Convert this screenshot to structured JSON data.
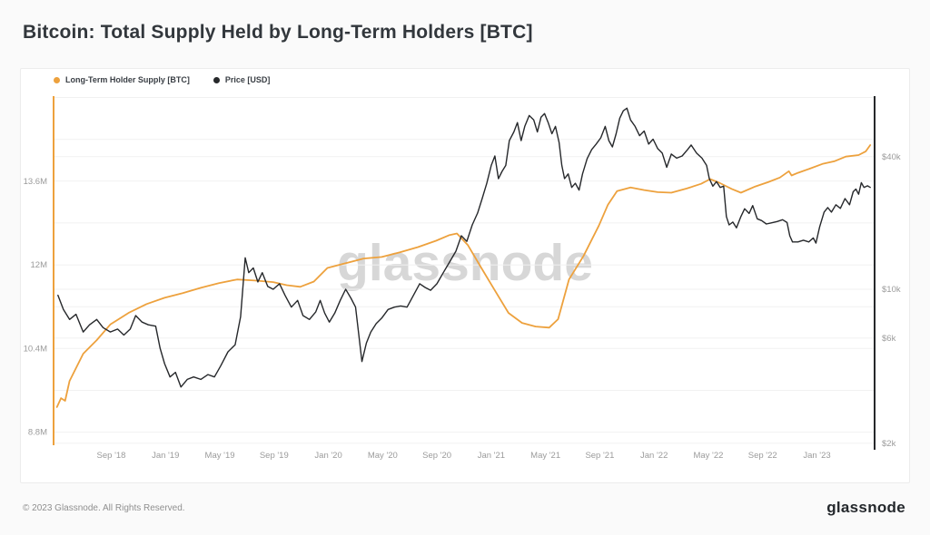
{
  "page": {
    "title": "Bitcoin: Total Supply Held by Long-Term Holders [BTC]",
    "watermark": "glassnode",
    "footer": {
      "copyright": "© 2023 Glassnode. All Rights Reserved.",
      "brand": "glassnode"
    }
  },
  "colors": {
    "supply": "#eda13d",
    "price": "#26282b",
    "grid": "#f1f1f1",
    "tick_label": "#9b9b9b",
    "background": "#ffffff"
  },
  "legend": [
    {
      "label": "Long-Term Holder Supply [BTC]",
      "color": "#eda13d"
    },
    {
      "label": "Price [USD]",
      "color": "#26282b"
    }
  ],
  "chart_data": {
    "type": "line",
    "title": "Bitcoin: Total Supply Held by Long-Term Holders [BTC]",
    "grid": "horizontal-only",
    "legend_position": "top-left",
    "x_axis": {
      "note": "t = months since 2018-05-01; data spans ~Apr 2018 to ~May 2023",
      "range": [
        -0.25,
        60.25
      ],
      "ticks": [
        {
          "t": 4,
          "label": "Sep '18"
        },
        {
          "t": 8,
          "label": "Jan '19"
        },
        {
          "t": 12,
          "label": "May '19"
        },
        {
          "t": 16,
          "label": "Sep '19"
        },
        {
          "t": 20,
          "label": "Jan '20"
        },
        {
          "t": 24,
          "label": "May '20"
        },
        {
          "t": 28,
          "label": "Sep '20"
        },
        {
          "t": 32,
          "label": "Jan '21"
        },
        {
          "t": 36,
          "label": "May '21"
        },
        {
          "t": 40,
          "label": "Sep '21"
        },
        {
          "t": 44,
          "label": "Jan '22"
        },
        {
          "t": 48,
          "label": "May '22"
        },
        {
          "t": 52,
          "label": "Sep '22"
        },
        {
          "t": 56,
          "label": "Jan '23"
        }
      ]
    },
    "y_left": {
      "name": "Long-Term Holder Supply [BTC]",
      "scale": "linear",
      "unit": "million BTC",
      "range": [
        8.55,
        15.4
      ],
      "grid_step": 0.8,
      "grid_start": 8.8,
      "ticks": [
        {
          "v": 8.8,
          "label": "8.8M"
        },
        {
          "v": 10.4,
          "label": "10.4M"
        },
        {
          "v": 12,
          "label": "12M"
        },
        {
          "v": 13.6,
          "label": "13.6M"
        }
      ]
    },
    "y_right": {
      "name": "Price [USD]",
      "scale": "log",
      "unit": "USD",
      "range": [
        1960,
        82800
      ],
      "ticks": [
        {
          "v": 2000,
          "label": "$2k"
        },
        {
          "v": 6000,
          "label": "$6k"
        },
        {
          "v": 10000,
          "label": "$10k"
        },
        {
          "v": 40000,
          "label": "$40k"
        }
      ]
    },
    "series": [
      {
        "name": "Long-Term Holder Supply [BTC]",
        "axis": "left",
        "color": "#eda13d",
        "width": 1.8,
        "points": [
          [
            0,
            9.28
          ],
          [
            0.3,
            9.45
          ],
          [
            0.6,
            9.4
          ],
          [
            0.93,
            9.78
          ],
          [
            1.93,
            10.3
          ],
          [
            2.93,
            10.56
          ],
          [
            3.93,
            10.86
          ],
          [
            5.27,
            11.08
          ],
          [
            6.6,
            11.25
          ],
          [
            7.93,
            11.37
          ],
          [
            9.27,
            11.46
          ],
          [
            10.6,
            11.56
          ],
          [
            11.93,
            11.65
          ],
          [
            13.27,
            11.72
          ],
          [
            14.6,
            11.7
          ],
          [
            15.93,
            11.67
          ],
          [
            16.93,
            11.61
          ],
          [
            17.93,
            11.58
          ],
          [
            18.93,
            11.68
          ],
          [
            19.93,
            11.94
          ],
          [
            21.27,
            12.03
          ],
          [
            22.6,
            12.12
          ],
          [
            23.93,
            12.15
          ],
          [
            25.27,
            12.24
          ],
          [
            26.6,
            12.34
          ],
          [
            27.93,
            12.46
          ],
          [
            28.93,
            12.57
          ],
          [
            29.47,
            12.6
          ],
          [
            30.27,
            12.38
          ],
          [
            31.27,
            11.94
          ],
          [
            32.27,
            11.51
          ],
          [
            33.27,
            11.08
          ],
          [
            34.27,
            10.89
          ],
          [
            35.27,
            10.82
          ],
          [
            36.27,
            10.8
          ],
          [
            36.93,
            10.96
          ],
          [
            37.73,
            11.72
          ],
          [
            38.8,
            12.17
          ],
          [
            39.93,
            12.75
          ],
          [
            40.6,
            13.15
          ],
          [
            41.27,
            13.41
          ],
          [
            42.27,
            13.48
          ],
          [
            43.27,
            13.43
          ],
          [
            44.27,
            13.39
          ],
          [
            45.27,
            13.38
          ],
          [
            46.4,
            13.46
          ],
          [
            47.47,
            13.55
          ],
          [
            48.13,
            13.64
          ],
          [
            48.8,
            13.57
          ],
          [
            49.73,
            13.45
          ],
          [
            50.4,
            13.38
          ],
          [
            51.47,
            13.5
          ],
          [
            52.4,
            13.58
          ],
          [
            53.27,
            13.67
          ],
          [
            53.93,
            13.79
          ],
          [
            54.13,
            13.71
          ],
          [
            54.6,
            13.76
          ],
          [
            55.47,
            13.84
          ],
          [
            56.4,
            13.93
          ],
          [
            57.27,
            13.98
          ],
          [
            58.13,
            14.07
          ],
          [
            59.07,
            14.1
          ],
          [
            59.6,
            14.17
          ],
          [
            59.93,
            14.29
          ]
        ]
      },
      {
        "name": "Price [USD]",
        "axis": "right",
        "color": "#26282b",
        "width": 1.4,
        "points": [
          [
            0.07,
            9400
          ],
          [
            0.47,
            8100
          ],
          [
            0.93,
            7300
          ],
          [
            1.4,
            7700
          ],
          [
            1.93,
            6400
          ],
          [
            2.4,
            6900
          ],
          [
            2.93,
            7300
          ],
          [
            3.4,
            6700
          ],
          [
            3.93,
            6400
          ],
          [
            4.47,
            6600
          ],
          [
            4.93,
            6200
          ],
          [
            5.4,
            6600
          ],
          [
            5.8,
            7600
          ],
          [
            6.27,
            7100
          ],
          [
            6.73,
            6900
          ],
          [
            7.27,
            6800
          ],
          [
            7.6,
            5400
          ],
          [
            7.93,
            4600
          ],
          [
            8.33,
            4000
          ],
          [
            8.73,
            4200
          ],
          [
            9.13,
            3600
          ],
          [
            9.6,
            3900
          ],
          [
            10.07,
            4000
          ],
          [
            10.6,
            3900
          ],
          [
            11.13,
            4100
          ],
          [
            11.6,
            4000
          ],
          [
            12.07,
            4500
          ],
          [
            12.6,
            5200
          ],
          [
            13.13,
            5600
          ],
          [
            13.53,
            7500
          ],
          [
            13.87,
            13900
          ],
          [
            14.13,
            11900
          ],
          [
            14.47,
            12500
          ],
          [
            14.8,
            10800
          ],
          [
            15.13,
            11900
          ],
          [
            15.53,
            10300
          ],
          [
            15.93,
            10000
          ],
          [
            16.4,
            10600
          ],
          [
            16.8,
            9400
          ],
          [
            17.27,
            8300
          ],
          [
            17.73,
            8900
          ],
          [
            18.13,
            7600
          ],
          [
            18.6,
            7300
          ],
          [
            19.07,
            7900
          ],
          [
            19.4,
            8900
          ],
          [
            19.73,
            7800
          ],
          [
            20.07,
            7100
          ],
          [
            20.47,
            7800
          ],
          [
            20.87,
            8900
          ],
          [
            21.27,
            10000
          ],
          [
            21.67,
            9100
          ],
          [
            22,
            8300
          ],
          [
            22.27,
            6000
          ],
          [
            22.47,
            4700
          ],
          [
            22.8,
            5700
          ],
          [
            23.13,
            6400
          ],
          [
            23.53,
            7000
          ],
          [
            23.93,
            7400
          ],
          [
            24.4,
            8100
          ],
          [
            24.87,
            8300
          ],
          [
            25.33,
            8400
          ],
          [
            25.8,
            8300
          ],
          [
            26.27,
            9400
          ],
          [
            26.73,
            10600
          ],
          [
            27.13,
            10200
          ],
          [
            27.53,
            9900
          ],
          [
            28,
            10600
          ],
          [
            28.47,
            11900
          ],
          [
            28.93,
            13300
          ],
          [
            29.4,
            14900
          ],
          [
            29.8,
            17500
          ],
          [
            30.2,
            16500
          ],
          [
            30.6,
            19600
          ],
          [
            31,
            22200
          ],
          [
            31.33,
            25800
          ],
          [
            31.67,
            30300
          ],
          [
            32,
            36500
          ],
          [
            32.27,
            40300
          ],
          [
            32.53,
            31800
          ],
          [
            32.8,
            34300
          ],
          [
            33.07,
            36500
          ],
          [
            33.33,
            47300
          ],
          [
            33.67,
            51800
          ],
          [
            33.93,
            57100
          ],
          [
            34.2,
            47300
          ],
          [
            34.47,
            54900
          ],
          [
            34.8,
            61500
          ],
          [
            35.13,
            58700
          ],
          [
            35.4,
            51800
          ],
          [
            35.67,
            60400
          ],
          [
            35.93,
            62700
          ],
          [
            36.2,
            57100
          ],
          [
            36.47,
            50800
          ],
          [
            36.73,
            54900
          ],
          [
            37,
            46400
          ],
          [
            37.2,
            36500
          ],
          [
            37.4,
            31800
          ],
          [
            37.67,
            33400
          ],
          [
            37.93,
            29000
          ],
          [
            38.2,
            30300
          ],
          [
            38.47,
            28200
          ],
          [
            38.73,
            33400
          ],
          [
            39.07,
            39200
          ],
          [
            39.4,
            43100
          ],
          [
            39.73,
            45600
          ],
          [
            40.07,
            48700
          ],
          [
            40.4,
            54900
          ],
          [
            40.67,
            47300
          ],
          [
            40.93,
            44300
          ],
          [
            41.2,
            50800
          ],
          [
            41.47,
            59800
          ],
          [
            41.73,
            64600
          ],
          [
            42,
            66400
          ],
          [
            42.27,
            58700
          ],
          [
            42.6,
            54900
          ],
          [
            42.93,
            49800
          ],
          [
            43.27,
            52300
          ],
          [
            43.6,
            45600
          ],
          [
            43.93,
            48000
          ],
          [
            44.27,
            43500
          ],
          [
            44.6,
            41500
          ],
          [
            44.93,
            35800
          ],
          [
            45.27,
            41100
          ],
          [
            45.67,
            39400
          ],
          [
            46.07,
            40300
          ],
          [
            46.47,
            43100
          ],
          [
            46.73,
            45200
          ],
          [
            47.13,
            41500
          ],
          [
            47.53,
            39400
          ],
          [
            47.87,
            36500
          ],
          [
            48.07,
            31800
          ],
          [
            48.33,
            29400
          ],
          [
            48.6,
            30800
          ],
          [
            48.87,
            29000
          ],
          [
            49.13,
            29400
          ],
          [
            49.33,
            21400
          ],
          [
            49.53,
            19600
          ],
          [
            49.8,
            20200
          ],
          [
            50.07,
            19000
          ],
          [
            50.4,
            21400
          ],
          [
            50.67,
            23200
          ],
          [
            51,
            22100
          ],
          [
            51.27,
            24000
          ],
          [
            51.6,
            20900
          ],
          [
            51.93,
            20500
          ],
          [
            52.27,
            19800
          ],
          [
            52.6,
            20000
          ],
          [
            53.07,
            20300
          ],
          [
            53.47,
            20700
          ],
          [
            53.8,
            20100
          ],
          [
            54,
            17500
          ],
          [
            54.2,
            16400
          ],
          [
            54.6,
            16400
          ],
          [
            55,
            16700
          ],
          [
            55.4,
            16400
          ],
          [
            55.73,
            17100
          ],
          [
            55.93,
            16200
          ],
          [
            56.2,
            19200
          ],
          [
            56.53,
            22400
          ],
          [
            56.8,
            23500
          ],
          [
            57.07,
            22400
          ],
          [
            57.4,
            24200
          ],
          [
            57.73,
            23300
          ],
          [
            58.07,
            25800
          ],
          [
            58.4,
            24200
          ],
          [
            58.67,
            27700
          ],
          [
            58.87,
            28500
          ],
          [
            59.07,
            27000
          ],
          [
            59.27,
            30500
          ],
          [
            59.47,
            29000
          ],
          [
            59.73,
            29500
          ],
          [
            59.93,
            29000
          ]
        ]
      }
    ]
  }
}
